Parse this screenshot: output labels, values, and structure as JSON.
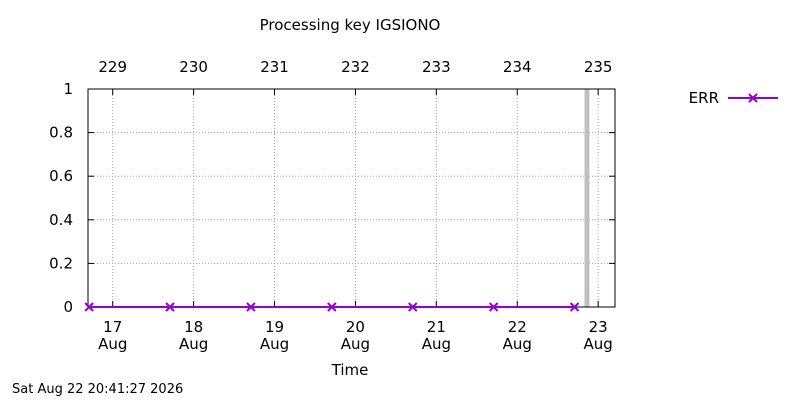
{
  "chart_data": {
    "type": "line",
    "title": "Processing key IGSIONO",
    "xlabel": "Time",
    "ylabel": "",
    "ylim": [
      0,
      1
    ],
    "yticks": [
      "0",
      "0.2",
      "0.4",
      "0.6",
      "0.8",
      "1"
    ],
    "x_axis_dates": [
      "2026-08-16T16:40",
      "2026-08-23T05:00"
    ],
    "x_bottom_ticks": [
      {
        "date": "2026-08-17",
        "day": "17",
        "month": "Aug"
      },
      {
        "date": "2026-08-18",
        "day": "18",
        "month": "Aug"
      },
      {
        "date": "2026-08-19",
        "day": "19",
        "month": "Aug"
      },
      {
        "date": "2026-08-20",
        "day": "20",
        "month": "Aug"
      },
      {
        "date": "2026-08-21",
        "day": "21",
        "month": "Aug"
      },
      {
        "date": "2026-08-22",
        "day": "22",
        "month": "Aug"
      },
      {
        "date": "2026-08-23",
        "day": "23",
        "month": "Aug"
      }
    ],
    "x_top_ticks": [
      {
        "date": "2026-08-17",
        "label": "229"
      },
      {
        "date": "2026-08-18",
        "label": "230"
      },
      {
        "date": "2026-08-19",
        "label": "231"
      },
      {
        "date": "2026-08-20",
        "label": "232"
      },
      {
        "date": "2026-08-21",
        "label": "233"
      },
      {
        "date": "2026-08-22",
        "label": "234"
      },
      {
        "date": "2026-08-23",
        "label": "235"
      }
    ],
    "grid": true,
    "legend": "right",
    "series": [
      {
        "name": "ERR",
        "color": "#9400d3",
        "marker": "x",
        "points": [
          {
            "x": "2026-08-16T17:00",
            "y": 0
          },
          {
            "x": "2026-08-17T17:00",
            "y": 0
          },
          {
            "x": "2026-08-18T17:00",
            "y": 0
          },
          {
            "x": "2026-08-19T17:00",
            "y": 0
          },
          {
            "x": "2026-08-20T17:00",
            "y": 0
          },
          {
            "x": "2026-08-21T17:00",
            "y": 0
          },
          {
            "x": "2026-08-22T17:00",
            "y": 0
          }
        ]
      }
    ],
    "current_time_marker": {
      "x": "2026-08-22T20:41",
      "color": "#c0c0c0"
    }
  },
  "timestamp": "Sat Aug 22 20:41:27 2026"
}
